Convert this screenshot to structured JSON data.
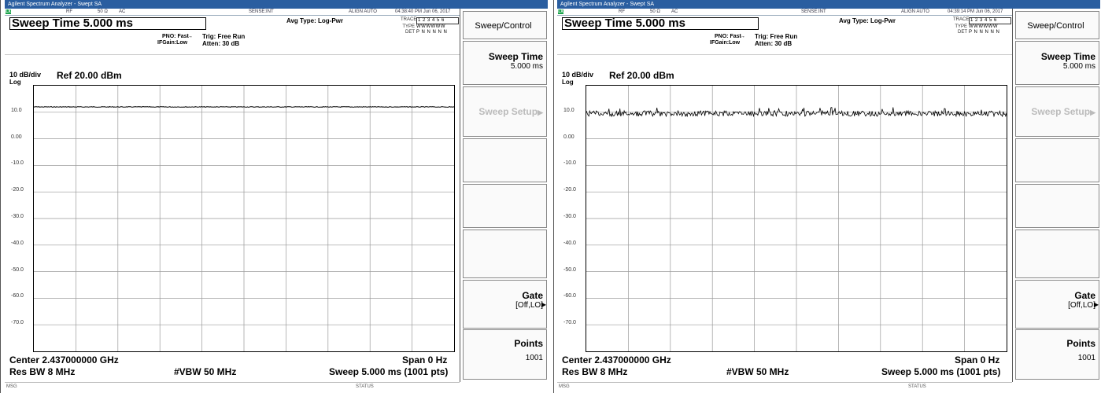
{
  "screens": [
    {
      "title": "Agilent Spectrum Analyzer - Swept SA",
      "status": {
        "lx": "LX",
        "rf": "RF",
        "ohm": "50 Ω",
        "ac": "AC",
        "sense": "SENSE:INT",
        "align": "ALIGN AUTO",
        "datetime": "04:38:40 PM Jun 06, 2017"
      },
      "sweep_time_entry": "Sweep Time 5.000 ms",
      "avg_type": "Avg Type: Log-Pwr",
      "pno": "PNO: Fast",
      "ifgain": "IFGain:Low",
      "trig": "Trig: Free Run",
      "atten": "Atten: 30 dB",
      "trace": {
        "label": "TRACE",
        "value": "1 2 3 4 5 6"
      },
      "type": {
        "label": "TYPE",
        "value": "WWWWWW"
      },
      "det": {
        "label": "DET",
        "value": "P N N N N N"
      },
      "scale": "10 dB/div",
      "ref": "Ref 20.00 dBm",
      "log": "Log",
      "y_labels": [
        "10.0",
        "0.00",
        "-10.0",
        "-20.0",
        "-30.0",
        "-40.0",
        "-50.0",
        "-60.0",
        "-70.0"
      ],
      "center": "Center 2.437000000 GHz",
      "span": "Span 0 Hz",
      "res_bw": "Res BW 8 MHz",
      "vbw": "#VBW 50 MHz",
      "sweep": "Sweep  5.000 ms (1001 pts)",
      "msg": "MSG",
      "status_label": "STATUS",
      "trace_style": "flat",
      "trace_level_dbm": 12.0,
      "softkeys": {
        "header": "Sweep/Control",
        "sweep_time": "Sweep Time",
        "sweep_time_value": "5.000 ms",
        "sweep_setup": "Sweep Setup",
        "gate": "Gate",
        "gate_value": "[Off,LO]",
        "points": "Points",
        "points_value": "1001"
      }
    },
    {
      "title": "Agilent Spectrum Analyzer - Swept SA",
      "status": {
        "lx": "LX",
        "rf": "RF",
        "ohm": "50 Ω",
        "ac": "AC",
        "sense": "SENSE:INT",
        "align": "ALIGN AUTO",
        "datetime": "04:39:14 PM Jun 06, 2017"
      },
      "sweep_time_entry": "Sweep Time 5.000 ms",
      "avg_type": "Avg Type: Log-Pwr",
      "pno": "PNO: Fast",
      "ifgain": "IFGain:Low",
      "trig": "Trig: Free Run",
      "atten": "Atten: 30 dB",
      "trace": {
        "label": "TRACE",
        "value": "1 2 3 4 5 6"
      },
      "type": {
        "label": "TYPE",
        "value": "WWWWWW"
      },
      "det": {
        "label": "DET",
        "value": "P N N N N N"
      },
      "scale": "10 dB/div",
      "ref": "Ref 20.00 dBm",
      "log": "Log",
      "y_labels": [
        "10.0",
        "0.00",
        "-10.0",
        "-20.0",
        "-30.0",
        "-40.0",
        "-50.0",
        "-60.0",
        "-70.0"
      ],
      "center": "Center 2.437000000 GHz",
      "span": "Span 0 Hz",
      "res_bw": "Res BW 8 MHz",
      "vbw": "#VBW 50 MHz",
      "sweep": "Sweep  5.000 ms (1001 pts)",
      "msg": "MSG",
      "status_label": "STATUS",
      "trace_style": "noisy",
      "trace_level_dbm": 9.5,
      "softkeys": {
        "header": "Sweep/Control",
        "sweep_time": "Sweep Time",
        "sweep_time_value": "5.000 ms",
        "sweep_setup": "Sweep Setup",
        "gate": "Gate",
        "gate_value": "[Off,LO]",
        "points": "Points",
        "points_value": "1001"
      }
    }
  ],
  "colors": {
    "titlebar": "#2a5ea0",
    "grid": "#999999",
    "trace": "#000000",
    "lx_badge": "#1aa34a"
  }
}
